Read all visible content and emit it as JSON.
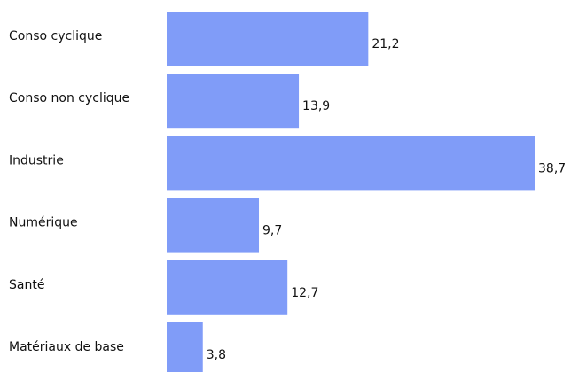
{
  "chart_data": {
    "type": "bar",
    "orientation": "horizontal",
    "categories": [
      "Conso cyclique",
      "Conso non cyclique",
      "Industrie",
      "Numérique",
      "Santé",
      "Matériaux de base"
    ],
    "values": [
      21.2,
      13.9,
      38.7,
      9.7,
      12.7,
      3.8
    ],
    "value_labels": [
      "21,2",
      "13,9",
      "38,7",
      "9,7",
      "12,7",
      "3,8"
    ],
    "title": "",
    "xlabel": "",
    "ylabel": "",
    "xlim": [
      0,
      38.7
    ],
    "grid": false,
    "legend": "none",
    "bar_color": "#809cf8"
  }
}
